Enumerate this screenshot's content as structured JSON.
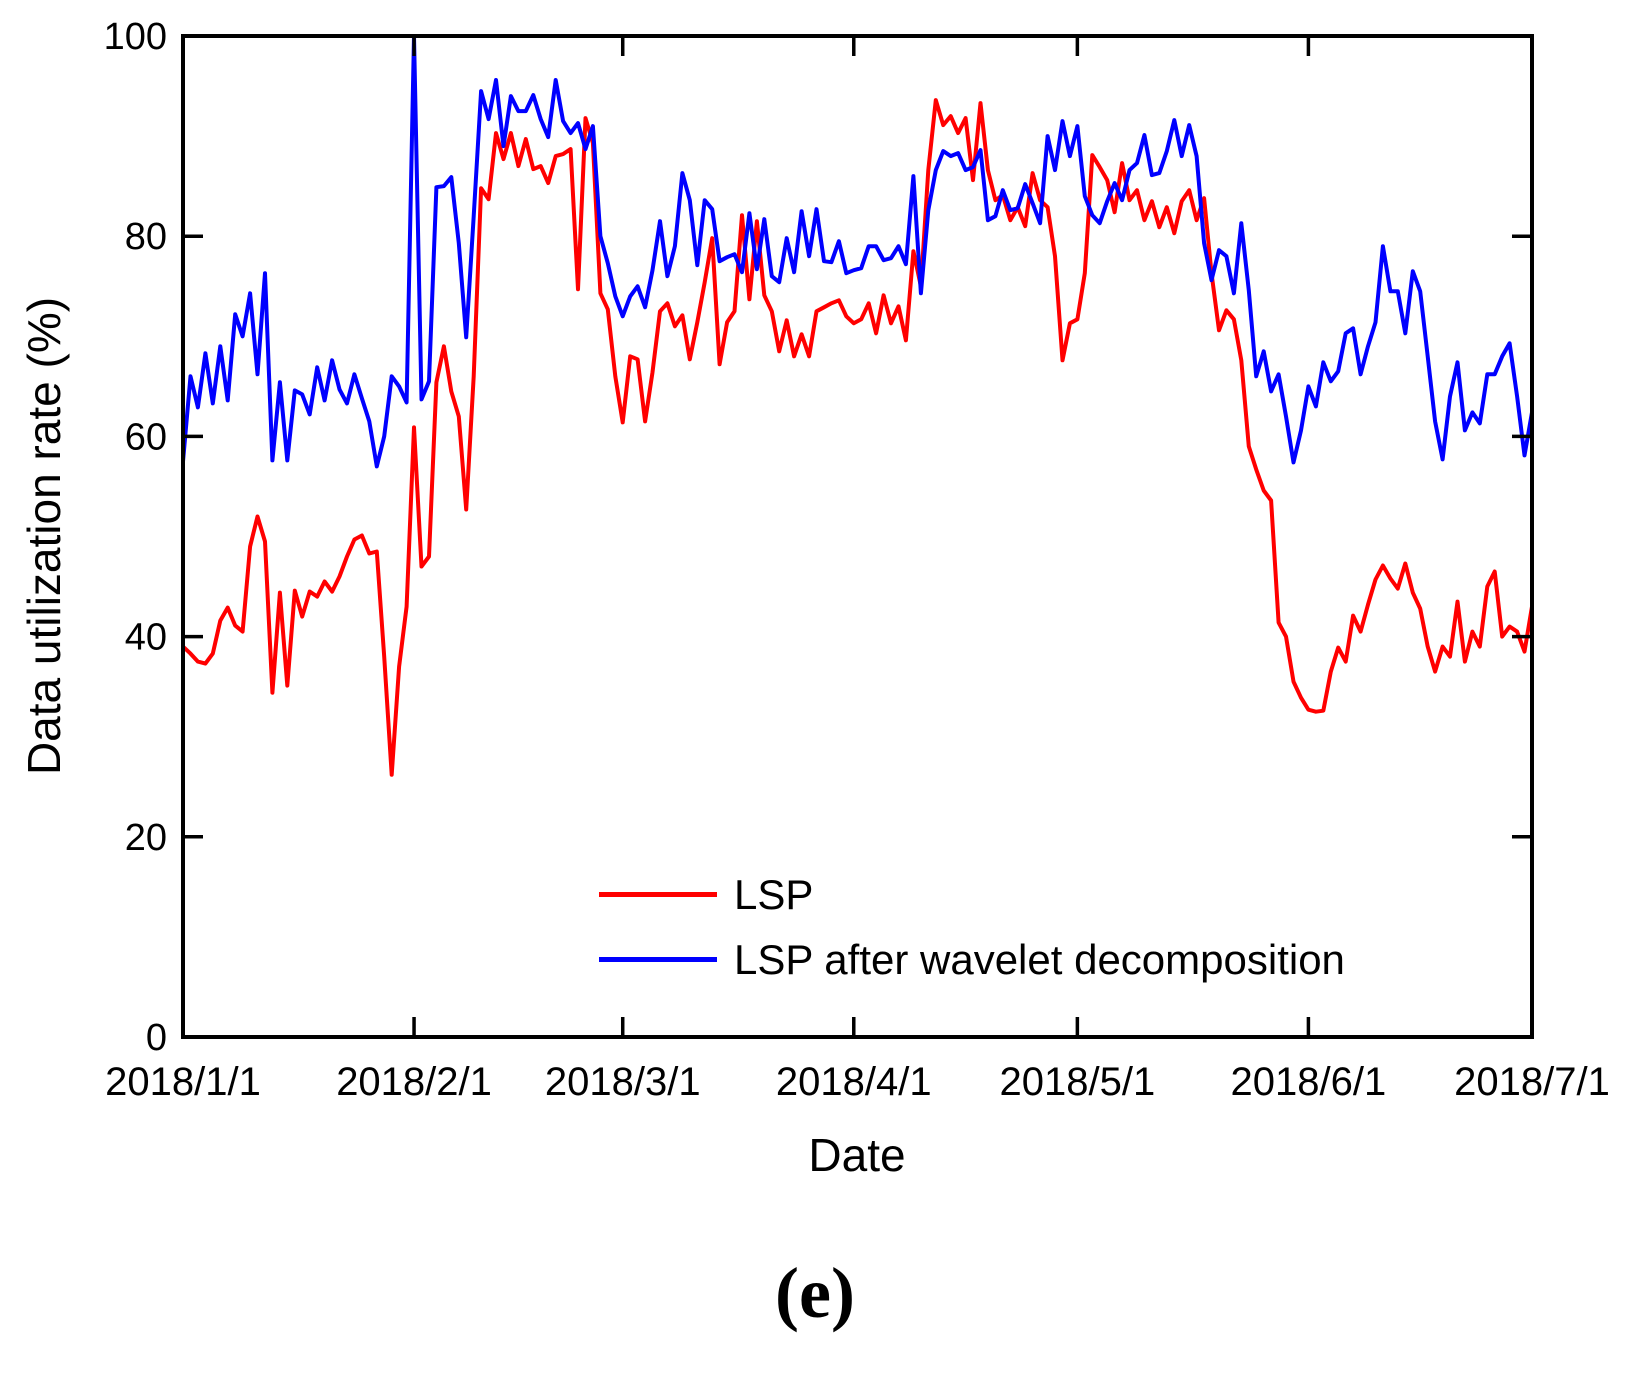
{
  "caption": "(e)",
  "colors": {
    "axis": "#000000",
    "background": "#ffffff",
    "series_red": "#ff0000",
    "series_blue": "#0000ff"
  },
  "chart_data": {
    "type": "line",
    "title": "",
    "xlabel": "Date",
    "ylabel": "Data utilization rate (%)",
    "ylim": [
      0,
      100
    ],
    "yticks": [
      0,
      20,
      40,
      60,
      80,
      100
    ],
    "grid": false,
    "x_axis": {
      "start_date": "2018/1/1",
      "end_date": "2018/7/1",
      "total_days": 181,
      "tick_labels": [
        "2018/1/1",
        "2018/2/1",
        "2018/3/1",
        "2018/4/1",
        "2018/5/1",
        "2018/6/1",
        "2018/7/1"
      ],
      "tick_day_indices": [
        0,
        31,
        59,
        90,
        120,
        151,
        181
      ]
    },
    "legend": {
      "position": "inside lower-center",
      "entries": [
        "LSP",
        "LSP after wavelet decomposition"
      ]
    },
    "series": [
      {
        "name": "LSP",
        "color": "#ff0000",
        "x_unit": "day index from 2018/1/1 (daily samples)",
        "values": [
          39,
          38.3,
          37.5,
          37.3,
          38.3,
          41.6,
          42.9,
          41.1,
          40.5,
          49,
          52,
          49.5,
          34.4,
          44.4,
          35.1,
          44.6,
          42,
          44.5,
          44,
          45.5,
          44.5,
          46,
          48,
          49.7,
          50.1,
          48.3,
          48.5,
          38,
          26.2,
          37,
          43,
          60.9,
          47,
          48,
          65.4,
          69,
          64.5,
          62,
          52.7,
          66,
          84.8,
          83.7,
          90.3,
          87.7,
          90.3,
          87,
          89.7,
          86.7,
          87,
          85.3,
          88,
          88.2,
          88.7,
          74.7,
          91.8,
          89.3,
          74.3,
          72.7,
          66,
          61.4,
          68,
          67.7,
          61.5,
          66.4,
          72.5,
          73.3,
          71,
          72.1,
          67.7,
          71.4,
          75.4,
          79.8,
          67.2,
          71.4,
          72.5,
          82.1,
          73.7,
          81.5,
          74.1,
          72.5,
          68.5,
          71.6,
          68,
          70.2,
          68,
          72.5,
          72.9,
          73.3,
          73.6,
          72,
          71.3,
          71.7,
          73.3,
          70.3,
          74.1,
          71.3,
          73,
          69.6,
          78.5,
          75,
          86.6,
          93.6,
          91.1,
          92,
          90.3,
          91.8,
          85.6,
          93.3,
          86.6,
          83.6,
          84.1,
          81.6,
          82.9,
          81,
          86.3,
          83.6,
          82.9,
          78,
          67.6,
          71.3,
          71.7,
          76.3,
          88.1,
          86.9,
          85.6,
          82.4,
          87.3,
          83.6,
          84.6,
          81.6,
          83.5,
          80.9,
          82.9,
          80.3,
          83.5,
          84.6,
          81.6,
          83.8,
          76.3,
          70.6,
          72.6,
          71.7,
          67.6,
          59,
          56.7,
          54.6,
          53.6,
          41.4,
          40,
          35.5,
          33.9,
          32.7,
          32.5,
          32.6,
          36.5,
          38.9,
          37.5,
          42.1,
          40.5,
          43.2,
          45.7,
          47.1,
          45.8,
          44.8,
          47.3,
          44.4,
          42.8,
          39,
          36.5,
          39,
          38,
          43.5,
          37.5,
          40.5,
          39,
          45,
          46.5,
          40,
          41,
          40.5,
          38.5,
          43
        ]
      },
      {
        "name": "LSP after wavelet decomposition",
        "color": "#0000ff",
        "x_unit": "day index from 2018/1/1 (daily samples)",
        "values": [
          57.5,
          66,
          62.9,
          68.3,
          63.3,
          69,
          63.6,
          72.2,
          70,
          74.3,
          66.2,
          76.3,
          57.6,
          65.4,
          57.6,
          64.6,
          64.2,
          62.2,
          66.9,
          63.6,
          67.6,
          64.7,
          63.3,
          66.2,
          63.8,
          61.5,
          57,
          60,
          66,
          65,
          63.4,
          100,
          63.7,
          65.5,
          84.9,
          85,
          85.9,
          79.3,
          69.9,
          82,
          94.5,
          91.7,
          95.6,
          89,
          94,
          92.5,
          92.5,
          94.1,
          91.7,
          89.9,
          95.6,
          91.5,
          90.3,
          91.3,
          88.7,
          91,
          80,
          77.3,
          74,
          72,
          74,
          75,
          72.9,
          76.6,
          81.5,
          76,
          79,
          86.3,
          83.6,
          77.1,
          83.6,
          82.7,
          77.5,
          77.9,
          78.2,
          76.4,
          82.3,
          76.7,
          81.7,
          76,
          75.4,
          79.8,
          76.4,
          82.5,
          78,
          82.7,
          77.5,
          77.4,
          79.5,
          76.3,
          76.6,
          76.8,
          79,
          79,
          77.6,
          77.8,
          79,
          77.2,
          86,
          74.3,
          82.6,
          86.6,
          88.5,
          88,
          88.3,
          86.6,
          86.9,
          88.6,
          81.6,
          82,
          84.6,
          82.6,
          82.8,
          85.2,
          83.3,
          81.3,
          90,
          86.6,
          91.5,
          88,
          91,
          84,
          82.1,
          81.3,
          83.5,
          85.3,
          83.6,
          86.6,
          87.3,
          90.1,
          86.1,
          86.3,
          88.5,
          91.6,
          88,
          91.1,
          88,
          79.3,
          75.6,
          78.6,
          78,
          74.3,
          81.3,
          74.6,
          66,
          68.5,
          64.5,
          66.2,
          62,
          57.4,
          60.6,
          65,
          63,
          67.4,
          65.5,
          66.5,
          70.3,
          70.8,
          66.2,
          69,
          71.4,
          79,
          74.5,
          74.5,
          70.3,
          76.5,
          74.5,
          68,
          61.5,
          57.7,
          64,
          67.4,
          60.6,
          62.4,
          61.3,
          66.2,
          66.2,
          68,
          69.3,
          64,
          58.1,
          62.4
        ]
      }
    ]
  }
}
